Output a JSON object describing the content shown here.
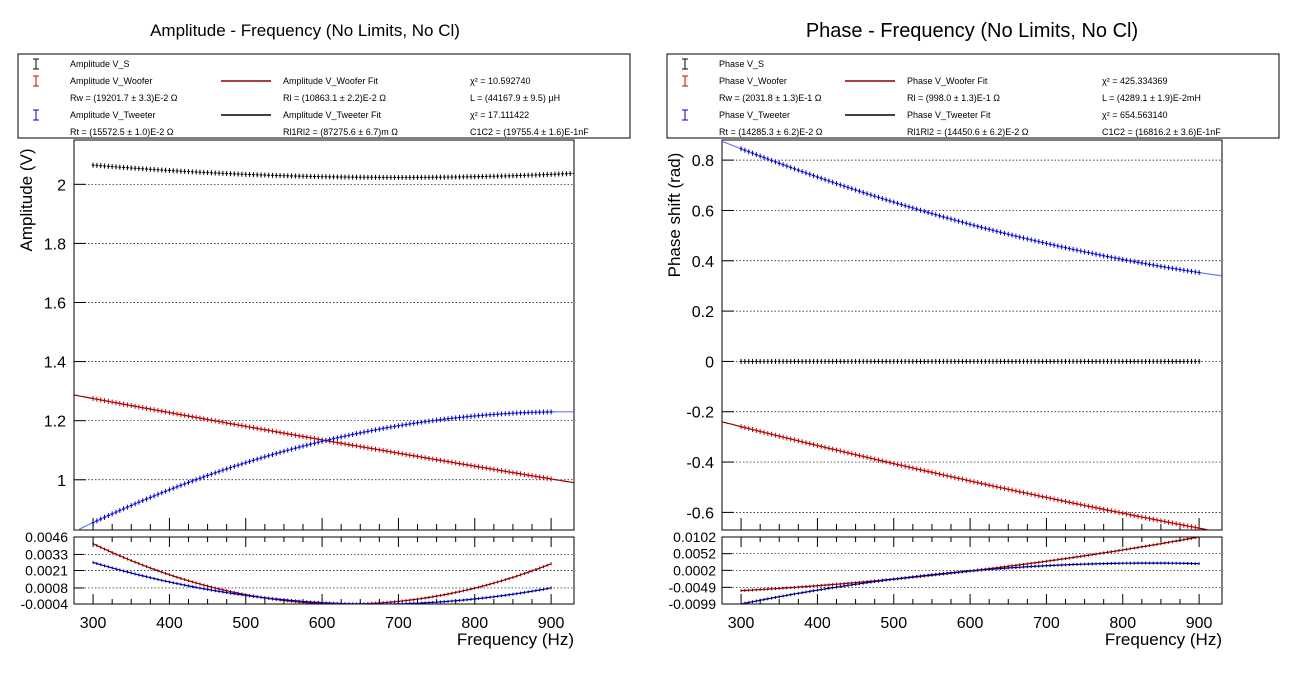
{
  "chart_data": [
    {
      "type": "scatter",
      "title": "Amplitude - Frequency (No Limits, No Cl)",
      "xlabel": "Frequency (Hz)",
      "ylabel": "Amplitude (V)",
      "xlim": [
        275,
        930
      ],
      "ylim": [
        0.83,
        2.15
      ],
      "x_ticks": [
        300,
        400,
        500,
        600,
        700,
        800,
        900
      ],
      "x_tick_labels": [
        "300",
        "400",
        "500",
        "600",
        "700",
        "800",
        "900"
      ],
      "y_ticks": [
        1.0,
        1.2,
        1.4,
        1.6,
        1.8,
        2.0
      ],
      "y_tick_labels": [
        "1",
        "1.2",
        "1.4",
        "1.6",
        "1.8",
        "2"
      ],
      "grid": "horizontal",
      "legend_placement": "top",
      "legend": {
        "rows": [
          {
            "key": "Amplitude V_S",
            "color": "#000000",
            "kind": "data",
            "text": "Amplitude V_S"
          },
          {
            "key": "Amplitude V_Woofer",
            "color": "#cc0000",
            "kind": "data",
            "text": "Amplitude V_Woofer",
            "fit_label": "Amplitude V_Woofer Fit",
            "chi_label": "χ² = 10.592740"
          },
          {
            "kind": "params",
            "texts": [
              "Rw = (19201.7     ± 3.3)E-2 Ω",
              "Rl = (10863.1    ± 2.2)E-2 Ω",
              "L = (44167.9      ± 9.5) μH"
            ]
          },
          {
            "key": "Amplitude V_Tweeter",
            "color": "#0000cc",
            "kind": "data",
            "text": "Amplitude V_Tweeter",
            "fit_label": "Amplitude V_Tweeter Fit",
            "chi_label": "χ² = 17.111422"
          },
          {
            "kind": "params",
            "texts": [
              "Rt = (15572.5     ± 1.0)E-2 Ω",
              "Rl1Rl2 = (87275.6     ± 6.7)m Ω",
              "C1C2 = (19755.4      ± 1.6)E-1nF"
            ]
          }
        ]
      },
      "series": [
        {
          "name": "Amplitude V_S",
          "color": "#000000",
          "model": "quad",
          "x_range": [
            300,
            930
          ],
          "x": [
            300,
            620,
            930
          ],
          "y": [
            2.065,
            2.025,
            2.037
          ]
        },
        {
          "name": "Amplitude V_Woofer",
          "color": "#cc0000",
          "fit_color": "#8b0000",
          "model": "quad",
          "x_range": [
            300,
            900
          ],
          "x": [
            300,
            600,
            930
          ],
          "y": [
            1.275,
            1.135,
            0.99
          ]
        },
        {
          "name": "Amplitude V_Tweeter",
          "color": "#0000cc",
          "fit_color": "#6c7ee8",
          "model": "quad",
          "x_range": [
            300,
            900
          ],
          "x": [
            300,
            600,
            930
          ],
          "y": [
            0.855,
            1.13,
            1.23
          ]
        }
      ],
      "residual_panel": {
        "y_tick_labels": [
          "0.0046",
          "0.0033",
          "0.0021",
          "0.0008",
          "-0.0004"
        ],
        "y_ticks": [
          0.0046,
          0.0033,
          0.0021,
          0.0008,
          -0.0004
        ],
        "series": [
          {
            "name": "Amplitude V_Woofer residual",
            "color": "#8b0000",
            "model": "quad",
            "x_range": [
              300,
              900
            ],
            "x": [
              300,
              620,
              900
            ],
            "y": [
              0.0041,
              -0.0004,
              0.0026
            ]
          },
          {
            "name": "Amplitude V_Tweeter residual",
            "color": "#0000aa",
            "model": "quad",
            "x_range": [
              300,
              900
            ],
            "x": [
              300,
              600,
              900
            ],
            "y": [
              0.0027,
              -0.0003,
              0.0008
            ]
          }
        ]
      }
    },
    {
      "type": "scatter",
      "title": "Phase - Frequency (No Limits, No Cl)",
      "xlabel": "Frequency (Hz)",
      "ylabel": "Phase shift (rad)",
      "xlim": [
        275,
        930
      ],
      "ylim": [
        -0.67,
        0.88
      ],
      "x_ticks": [
        300,
        400,
        500,
        600,
        700,
        800,
        900
      ],
      "x_tick_labels": [
        "300",
        "400",
        "500",
        "600",
        "700",
        "800",
        "900"
      ],
      "y_ticks": [
        -0.6,
        -0.4,
        -0.2,
        0,
        0.2,
        0.4,
        0.6,
        0.8
      ],
      "y_tick_labels": [
        "-0.6",
        "-0.4",
        "-0.2",
        "0",
        "0.2",
        "0.4",
        "0.6",
        "0.8"
      ],
      "grid": "horizontal",
      "legend_placement": "top",
      "legend": {
        "rows": [
          {
            "key": "Phase V_S",
            "color": "#000000",
            "kind": "data",
            "text": "Phase V_S"
          },
          {
            "key": "Phase V_Woofer",
            "color": "#cc0000",
            "kind": "data",
            "text": "Phase V_Woofer",
            "fit_label": "Phase V_Woofer Fit",
            "chi_label": "χ² = 425.334369"
          },
          {
            "kind": "params",
            "texts": [
              "Rw = (2031.8      ± 1.3)E-1 Ω",
              "Rl = (998.0     ± 1.3)E-1 Ω",
              "L = (4289.1     ± 1.9)E-2mH"
            ]
          },
          {
            "key": "Phase V_Tweeter",
            "color": "#0000cc",
            "kind": "data",
            "text": "Phase V_Tweeter",
            "fit_label": "Phase V_Tweeter Fit",
            "chi_label": "χ² = 654.563140"
          },
          {
            "kind": "params",
            "texts": [
              "Rt = (14285.3     ± 6.2)E-2 Ω",
              "Rl1Rl2 = (14450.6     ± 6.2)E-2 Ω",
              "C1C2 = (16816.2      ± 3.6)E-1nF"
            ]
          }
        ]
      },
      "series": [
        {
          "name": "Phase V_S",
          "color": "#000000",
          "model": "quad",
          "x_range": [
            300,
            900
          ],
          "x": [
            300,
            600,
            900
          ],
          "y": [
            0,
            0,
            0
          ]
        },
        {
          "name": "Phase V_Woofer",
          "color": "#cc0000",
          "fit_color": "#8b0000",
          "model": "quad",
          "x_range": [
            300,
            900
          ],
          "x": [
            275,
            600,
            930
          ],
          "y": [
            -0.24,
            -0.475,
            -0.68
          ]
        },
        {
          "name": "Phase V_Tweeter",
          "color": "#0000cc",
          "fit_color": "#6c7ee8",
          "model": "quad",
          "x_range": [
            300,
            900
          ],
          "x": [
            275,
            600,
            930
          ],
          "y": [
            0.875,
            0.545,
            0.34
          ]
        }
      ],
      "residual_panel": {
        "y_tick_labels": [
          "0.0102",
          "0.0052",
          "0.0002",
          "-0.0049",
          "-0.0099"
        ],
        "y_ticks": [
          0.0102,
          0.0052,
          0.0002,
          -0.0049,
          -0.0099
        ],
        "series": [
          {
            "name": "Phase V_Woofer residual",
            "color": "#8b0000",
            "model": "quad",
            "x_range": [
              300,
              900
            ],
            "x": [
              300,
              600,
              900
            ],
            "y": [
              -0.0059,
              0.0,
              0.0102
            ]
          },
          {
            "name": "Phase V_Tweeter residual",
            "color": "#000088",
            "model": "quad",
            "x_range": [
              300,
              900
            ],
            "x": [
              300,
              600,
              900
            ],
            "y": [
              -0.0099,
              0.0,
              0.0022
            ]
          }
        ]
      }
    }
  ]
}
